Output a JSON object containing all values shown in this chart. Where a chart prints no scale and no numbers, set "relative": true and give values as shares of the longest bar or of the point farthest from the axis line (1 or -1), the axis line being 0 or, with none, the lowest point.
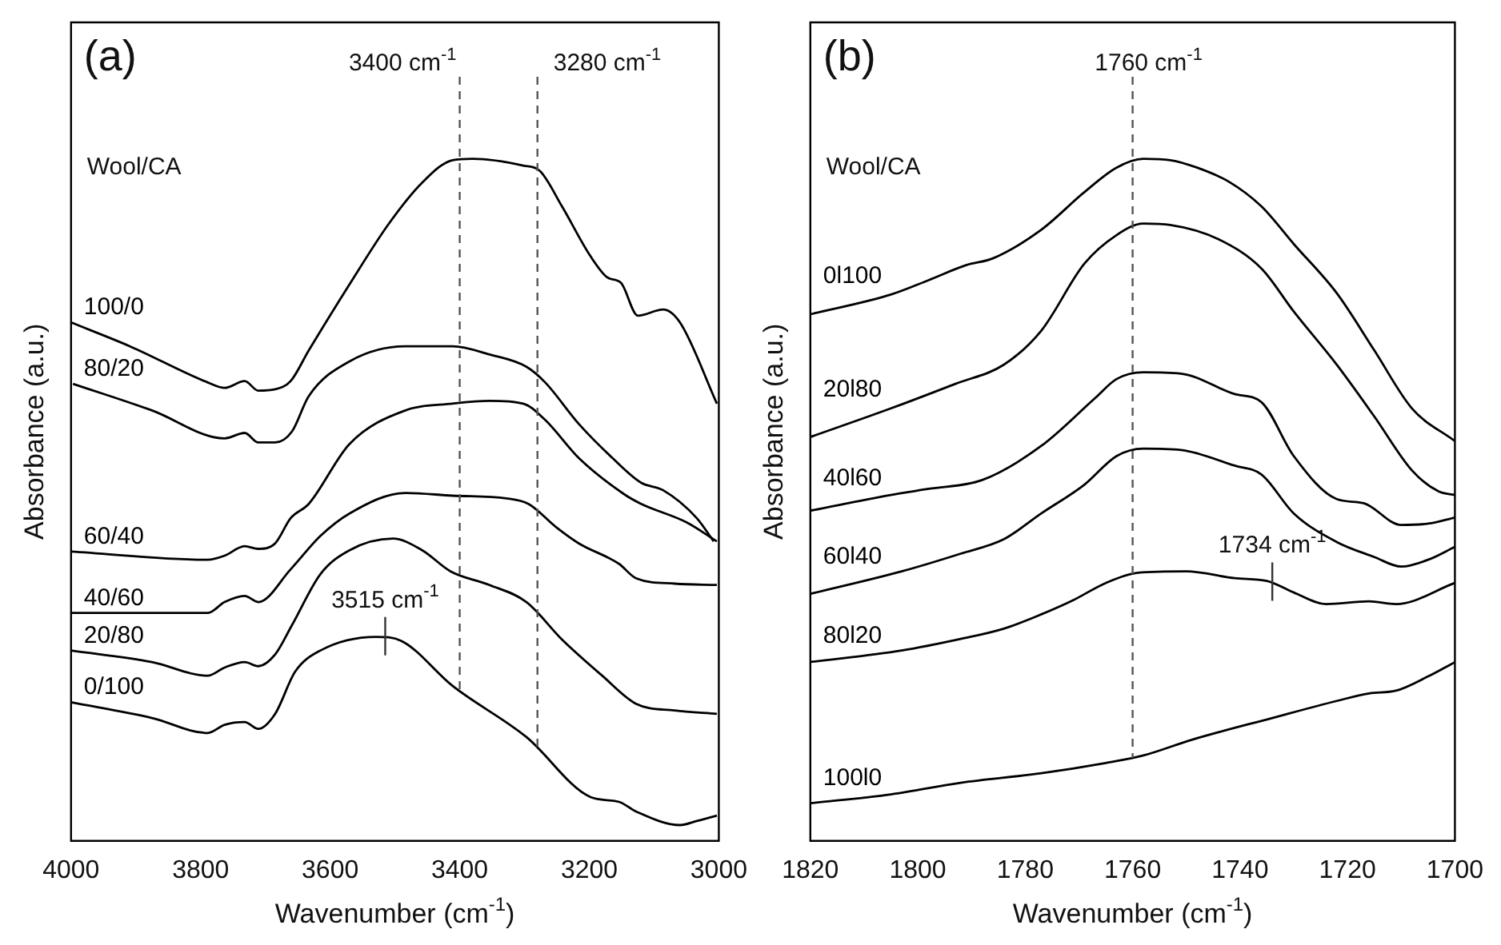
{
  "chart_data": [
    {
      "type": "line",
      "title": "(a)",
      "xlabel": "Wavenumber (cm$^{-1}$)",
      "ylabel": "Absorbance (a.u.)",
      "relative": true,
      "marker": "none",
      "line_style": "solid",
      "xlim": [
        4000,
        3000
      ],
      "xticks": [
        4000,
        3800,
        3600,
        3400,
        3200,
        3000
      ],
      "annotations": [
        "Wool/CA",
        {
          "text": "3515 cm$^{-1}$",
          "x": 3515,
          "y": 0.3
        }
      ],
      "ref_lines": [
        {
          "axis": "x",
          "value": 3400,
          "label": "3400 cm$^{-1}$",
          "color": "#555555",
          "line_style": "dashed"
        },
        {
          "axis": "x",
          "value": 3280,
          "label": "3280 cm$^{-1}$",
          "color": "#555555",
          "line_style": "dashed"
        }
      ],
      "series": [
        {
          "name": "100/0",
          "color": "#000000",
          "x": [
            4000,
            3909,
            3789,
            3763,
            3732,
            3711,
            3685,
            3661,
            3633,
            3570,
            3510,
            3458,
            3411,
            3380,
            3302,
            3276,
            3242,
            3198,
            3172,
            3151,
            3125,
            3086,
            3060,
            3003
          ],
          "values": [
            0.76,
            0.725,
            0.672,
            0.664,
            0.674,
            0.66,
            0.662,
            0.674,
            0.719,
            0.816,
            0.904,
            0.965,
            0.998,
            1.0,
            0.99,
            0.982,
            0.93,
            0.857,
            0.826,
            0.818,
            0.77,
            0.779,
            0.76,
            0.641
          ]
        },
        {
          "name": "80/20",
          "color": "#000000",
          "x": [
            3997,
            3875,
            3763,
            3732,
            3711,
            3685,
            3659,
            3633,
            3570,
            3484,
            3411,
            3354,
            3297,
            3268,
            3216,
            3164,
            3120,
            3086,
            3034,
            3008
          ],
          "values": [
            0.67,
            0.631,
            0.59,
            0.598,
            0.584,
            0.584,
            0.6,
            0.652,
            0.703,
            0.725,
            0.725,
            0.713,
            0.695,
            0.672,
            0.611,
            0.561,
            0.525,
            0.514,
            0.473,
            0.439
          ]
        },
        {
          "name": "60/40",
          "color": "#000000",
          "x": [
            4000,
            3789,
            3763,
            3732,
            3711,
            3685,
            3661,
            3633,
            3570,
            3484,
            3411,
            3354,
            3302,
            3268,
            3216,
            3146,
            3120,
            3050,
            3003
          ],
          "values": [
            0.424,
            0.412,
            0.418,
            0.432,
            0.428,
            0.436,
            0.473,
            0.494,
            0.582,
            0.631,
            0.641,
            0.645,
            0.641,
            0.617,
            0.561,
            0.508,
            0.494,
            0.467,
            0.439
          ]
        },
        {
          "name": "40/60",
          "color": "#000000",
          "x": [
            4000,
            3789,
            3763,
            3732,
            3711,
            3661,
            3615,
            3570,
            3484,
            3411,
            3328,
            3294,
            3250,
            3216,
            3154,
            3128,
            3068,
            3003
          ],
          "values": [
            0.334,
            0.334,
            0.35,
            0.359,
            0.35,
            0.398,
            0.447,
            0.48,
            0.51,
            0.506,
            0.502,
            0.494,
            0.459,
            0.436,
            0.406,
            0.385,
            0.377,
            0.375
          ]
        },
        {
          "name": "20/80",
          "color": "#000000",
          "x": [
            4000,
            3875,
            3789,
            3763,
            3732,
            3711,
            3685,
            3659,
            3615,
            3570,
            3503,
            3458,
            3414,
            3354,
            3297,
            3242,
            3180,
            3128,
            3068,
            3003
          ],
          "values": [
            0.279,
            0.262,
            0.242,
            0.254,
            0.262,
            0.256,
            0.273,
            0.316,
            0.391,
            0.426,
            0.443,
            0.426,
            0.395,
            0.375,
            0.35,
            0.295,
            0.242,
            0.201,
            0.191,
            0.186
          ]
        },
        {
          "name": "0/100",
          "color": "#000000",
          "x": [
            4000,
            3875,
            3789,
            3763,
            3732,
            3711,
            3685,
            3654,
            3615,
            3529,
            3490,
            3411,
            3297,
            3198,
            3154,
            3128,
            3060,
            3034,
            3003
          ],
          "values": [
            0.203,
            0.18,
            0.158,
            0.17,
            0.174,
            0.164,
            0.186,
            0.248,
            0.279,
            0.299,
            0.293,
            0.227,
            0.152,
            0.064,
            0.057,
            0.043,
            0.023,
            0.029,
            0.037
          ]
        }
      ]
    },
    {
      "type": "line",
      "title": "(b)",
      "xlabel": "Wavenumber (cm$^{-1}$)",
      "ylabel": "Absorbance (a.u.)",
      "relative": true,
      "marker": "none",
      "line_style": "solid",
      "xlim": [
        1820,
        1700
      ],
      "xticks": [
        1820,
        1800,
        1780,
        1760,
        1740,
        1720,
        1700
      ],
      "annotations": [
        "Wool/CA",
        {
          "text": "1734 cm$^{-1}$",
          "x": 1734,
          "y": 0.38
        }
      ],
      "ref_lines": [
        {
          "axis": "x",
          "value": 1760,
          "label": "1760 cm$^{-1}$",
          "color": "#555555",
          "line_style": "dashed"
        }
      ],
      "series": [
        {
          "name": "0l100",
          "color": "#000000",
          "x": [
            1820,
            1805,
            1798,
            1791,
            1786,
            1777,
            1769,
            1763,
            1758,
            1753,
            1748,
            1742,
            1736,
            1730,
            1722,
            1715,
            1708,
            1700
          ],
          "values": [
            0.772,
            0.801,
            0.822,
            0.844,
            0.854,
            0.896,
            0.951,
            0.987,
            1.0,
            0.998,
            0.987,
            0.966,
            0.93,
            0.875,
            0.803,
            0.719,
            0.634,
            0.586
          ]
        },
        {
          "name": "20l80",
          "color": "#000000",
          "x": [
            1820,
            1805,
            1793,
            1784,
            1777,
            1769,
            1763,
            1758,
            1753,
            1744,
            1736,
            1730,
            1722,
            1715,
            1708,
            1703,
            1700
          ],
          "values": [
            0.592,
            0.634,
            0.67,
            0.698,
            0.748,
            0.846,
            0.888,
            0.905,
            0.903,
            0.882,
            0.839,
            0.776,
            0.698,
            0.622,
            0.543,
            0.512,
            0.507
          ]
        },
        {
          "name": "40l60",
          "color": "#000000",
          "x": [
            1820,
            1805,
            1798,
            1788,
            1777,
            1767,
            1763,
            1758,
            1751,
            1741,
            1736,
            1730,
            1722,
            1717,
            1710,
            1705,
            1700
          ],
          "values": [
            0.484,
            0.507,
            0.516,
            0.529,
            0.579,
            0.649,
            0.677,
            0.687,
            0.685,
            0.655,
            0.643,
            0.564,
            0.501,
            0.495,
            0.463,
            0.465,
            0.474
          ]
        },
        {
          "name": "60l40",
          "color": "#000000",
          "x": [
            1820,
            1803,
            1792,
            1784,
            1777,
            1769,
            1763,
            1758,
            1751,
            1741,
            1736,
            1730,
            1722,
            1715,
            1710,
            1705,
            1700
          ],
          "values": [
            0.362,
            0.395,
            0.421,
            0.442,
            0.48,
            0.522,
            0.564,
            0.575,
            0.573,
            0.55,
            0.537,
            0.48,
            0.438,
            0.416,
            0.402,
            0.412,
            0.431
          ]
        },
        {
          "name": "80l20",
          "color": "#000000",
          "x": [
            1820,
            1803,
            1792,
            1784,
            1777,
            1771,
            1765,
            1759,
            1750,
            1741,
            1735,
            1730,
            1724,
            1716,
            1711,
            1700
          ],
          "values": [
            0.262,
            0.279,
            0.296,
            0.311,
            0.332,
            0.353,
            0.378,
            0.393,
            0.395,
            0.385,
            0.381,
            0.364,
            0.347,
            0.351,
            0.347,
            0.378
          ]
        },
        {
          "name": "100l0",
          "color": "#000000",
          "x": [
            1820,
            1805,
            1792,
            1777,
            1765,
            1758,
            1749,
            1734,
            1722,
            1716,
            1711,
            1705,
            1700
          ],
          "values": [
            0.055,
            0.068,
            0.085,
            0.099,
            0.114,
            0.125,
            0.148,
            0.18,
            0.205,
            0.216,
            0.22,
            0.241,
            0.262
          ]
        }
      ]
    }
  ]
}
